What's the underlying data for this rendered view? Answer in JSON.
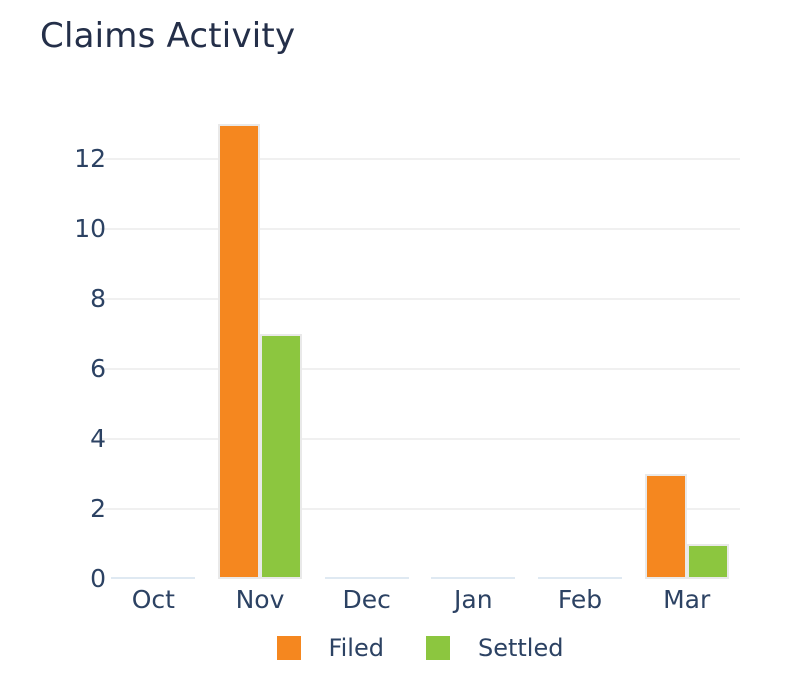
{
  "title": "Claims Activity",
  "colors": {
    "background": "#ffffff",
    "title_text": "#242f49",
    "axis_text": "#2c4263",
    "gridline": "#f0f0f0",
    "bar_border": "#e9e9e9",
    "zero_value_strip": "#dfe9f2",
    "filed": "#f5871f",
    "settled": "#8cc63f"
  },
  "chart_data": {
    "type": "bar",
    "title": "Claims Activity",
    "categories": [
      "Oct",
      "Nov",
      "Dec",
      "Jan",
      "Feb",
      "Mar"
    ],
    "series": [
      {
        "name": "Filed",
        "color": "#f5871f",
        "values": [
          0,
          13,
          0,
          0,
          0,
          3
        ]
      },
      {
        "name": "Settled",
        "color": "#8cc63f",
        "values": [
          0,
          7,
          0,
          0,
          0,
          1
        ]
      }
    ],
    "xlabel": "",
    "ylabel": "",
    "ylim": [
      0,
      13
    ],
    "yticks": [
      0,
      2,
      4,
      6,
      8,
      10,
      12
    ],
    "grid": true,
    "legend_position": "bottom"
  }
}
